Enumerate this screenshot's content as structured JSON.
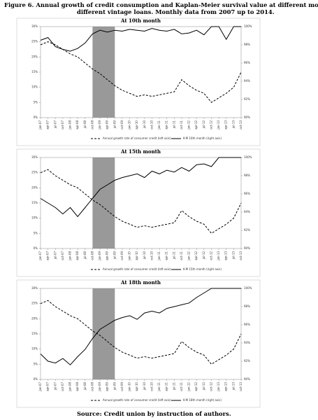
{
  "title": "Figure 6. Annual growth of credit consumption and Kaplan-Meier survival value at different months of different vintage loans. Monthly data from 2007 up to 2014.",
  "source": "Source: Credit union by instruction of authors.",
  "chart_data": [
    {
      "type": "line",
      "title": "At 10th month",
      "categories": [
        "jan-07",
        "apr-07",
        "jul-07",
        "oct-07",
        "jan-08",
        "apr-08",
        "jul-08",
        "oct-08",
        "jan-09",
        "apr-09",
        "jul-09",
        "oct-09",
        "jan-10",
        "apr-10",
        "jul-10",
        "oct-10",
        "jan-11",
        "apr-11",
        "jul-11",
        "oct-11",
        "jan-12",
        "apr-12",
        "jul-12",
        "oct-12",
        "jan-13",
        "apr-13",
        "jul-13",
        "oct-13"
      ],
      "shaded": [
        "oct-08",
        "jul-09"
      ],
      "series": [
        {
          "name": "Annual growth rate of consumer credit (left axis)",
          "color": "#000000",
          "style": "dashed",
          "axis": "y",
          "values": [
            24,
            25,
            24,
            22.5,
            21,
            20,
            18,
            16,
            14.5,
            12.5,
            10.5,
            9,
            8,
            7,
            7.5,
            7,
            7.5,
            8,
            8.5,
            12.5,
            10.5,
            9,
            8,
            5,
            6.5,
            8,
            10,
            15
          ]
        },
        {
          "name": "K-M 10th month (right axis)",
          "color": "#000000",
          "style": "solid",
          "axis": "y2",
          "values": [
            98.5,
            98.8,
            97.8,
            97.5,
            97.3,
            97.6,
            98.2,
            99.2,
            99.6,
            99.4,
            99.6,
            99.5,
            99.7,
            99.6,
            99.5,
            99.8,
            99.6,
            99.5,
            99.7,
            99.2,
            99.3,
            99.6,
            99.1,
            100,
            100,
            98.6,
            100,
            100
          ]
        }
      ],
      "ylim": [
        0,
        30
      ],
      "yticks": [
        {
          "value": 0,
          "label": "0%"
        },
        {
          "value": 5,
          "label": "5%"
        },
        {
          "value": 10,
          "label": "10%"
        },
        {
          "value": 15,
          "label": "15%"
        },
        {
          "value": 20,
          "label": "20%"
        },
        {
          "value": 25,
          "label": "25%"
        },
        {
          "value": 30,
          "label": "30%"
        }
      ],
      "y2lim": [
        90,
        100
      ],
      "y2ticks": [
        {
          "value": 90,
          "label": "90%"
        },
        {
          "value": 92,
          "label": "92%"
        },
        {
          "value": 94,
          "label": "94%"
        },
        {
          "value": 96,
          "label": "96%"
        },
        {
          "value": 98,
          "label": "98%"
        },
        {
          "value": 100,
          "label": "100%"
        }
      ]
    },
    {
      "type": "line",
      "title": "At 15th month",
      "categories": [
        "jan-07",
        "apr-07",
        "jul-07",
        "oct-07",
        "jan-08",
        "apr-08",
        "jul-08",
        "oct-08",
        "jan-09",
        "apr-09",
        "jul-09",
        "oct-09",
        "jan-10",
        "apr-10",
        "jul-10",
        "oct-10",
        "jan-11",
        "apr-11",
        "jul-11",
        "oct-11",
        "jan-12",
        "apr-12",
        "jul-12",
        "oct-12",
        "jan-13",
        "apr-13",
        "jul-13",
        "oct-13"
      ],
      "shaded": [
        "oct-08",
        "jul-09"
      ],
      "series": [
        {
          "name": "Annual growth rate of consumer credit (left axis)",
          "color": "#000000",
          "style": "dashed",
          "axis": "y",
          "values": [
            25,
            26,
            24,
            22.5,
            21,
            20,
            18,
            16,
            14.5,
            12.5,
            10.5,
            9,
            8,
            7,
            7.5,
            7,
            7.5,
            8,
            8.5,
            12.5,
            10.5,
            9,
            8,
            5,
            6.5,
            8,
            10,
            15
          ]
        },
        {
          "name": "K-M 15th month (right axis)",
          "color": "#000000",
          "style": "solid",
          "axis": "y2",
          "values": [
            95.5,
            95,
            94.5,
            93.8,
            94.5,
            93.5,
            94.5,
            95.5,
            96.5,
            97,
            97.5,
            97.8,
            98,
            98.2,
            97.8,
            98.5,
            98.2,
            98.6,
            98.4,
            98.9,
            98.5,
            99.2,
            99.3,
            99,
            100,
            100,
            100,
            100
          ]
        }
      ],
      "ylim": [
        0,
        30
      ],
      "yticks": [
        {
          "value": 0,
          "label": "0%"
        },
        {
          "value": 5,
          "label": "5%"
        },
        {
          "value": 10,
          "label": "10%"
        },
        {
          "value": 15,
          "label": "15%"
        },
        {
          "value": 20,
          "label": "20%"
        },
        {
          "value": 25,
          "label": "25%"
        },
        {
          "value": 30,
          "label": "30%"
        }
      ],
      "y2lim": [
        90,
        100
      ],
      "y2ticks": [
        {
          "value": 90,
          "label": "90%"
        },
        {
          "value": 92,
          "label": "92%"
        },
        {
          "value": 94,
          "label": "94%"
        },
        {
          "value": 96,
          "label": "96%"
        },
        {
          "value": 98,
          "label": "98%"
        },
        {
          "value": 100,
          "label": "100%"
        }
      ]
    },
    {
      "type": "line",
      "title": "At 18th month",
      "categories": [
        "jan-07",
        "apr-07",
        "jul-07",
        "oct-07",
        "jan-08",
        "apr-08",
        "jul-08",
        "oct-08",
        "jan-09",
        "apr-09",
        "jul-09",
        "oct-09",
        "jan-10",
        "apr-10",
        "jul-10",
        "oct-10",
        "jan-11",
        "apr-11",
        "jul-11",
        "oct-11",
        "jan-12",
        "apr-12",
        "jul-12",
        "oct-12",
        "jan-13",
        "apr-13",
        "jul-13",
        "oct-13"
      ],
      "shaded": [
        "oct-08",
        "jul-09"
      ],
      "series": [
        {
          "name": "Annual growth rate of consumer credit (left axis)",
          "color": "#000000",
          "style": "dashed",
          "axis": "y",
          "values": [
            25,
            26,
            24,
            22.5,
            21,
            20,
            18,
            16,
            14.5,
            12.5,
            10.5,
            9,
            8,
            7,
            7.5,
            7,
            7.5,
            8,
            8.5,
            12.5,
            10.5,
            9,
            8,
            5,
            6.5,
            8,
            10,
            15
          ]
        },
        {
          "name": "K-M 18th month (right axis)",
          "color": "#000000",
          "style": "solid",
          "axis": "y2",
          "values": [
            92.8,
            92,
            91.8,
            92.3,
            91.6,
            92.5,
            93.3,
            94.5,
            95.5,
            96,
            96.5,
            96.8,
            97,
            96.6,
            97.3,
            97.5,
            97.3,
            97.8,
            98,
            98.2,
            98.4,
            99,
            99.5,
            100,
            100,
            100,
            100,
            100
          ]
        }
      ],
      "ylim": [
        0,
        30
      ],
      "yticks": [
        {
          "value": 0,
          "label": "0%"
        },
        {
          "value": 5,
          "label": "5%"
        },
        {
          "value": 10,
          "label": "10%"
        },
        {
          "value": 15,
          "label": "15%"
        },
        {
          "value": 20,
          "label": "20%"
        },
        {
          "value": 25,
          "label": "25%"
        },
        {
          "value": 30,
          "label": "30%"
        }
      ],
      "y2lim": [
        90,
        100
      ],
      "y2ticks": [
        {
          "value": 90,
          "label": "90%"
        },
        {
          "value": 92,
          "label": "92%"
        },
        {
          "value": 94,
          "label": "94%"
        },
        {
          "value": 96,
          "label": "96%"
        },
        {
          "value": 98,
          "label": "98%"
        },
        {
          "value": 100,
          "label": "100%"
        }
      ]
    }
  ]
}
